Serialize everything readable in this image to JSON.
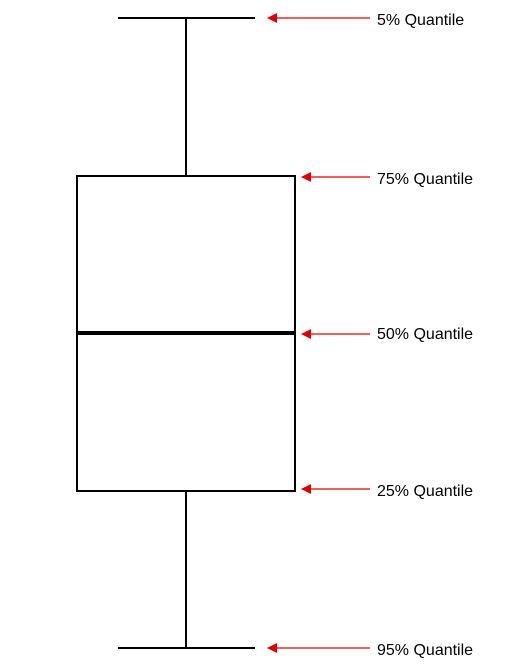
{
  "labels": {
    "q5": "5% Quantile",
    "q75": "75% Quantile",
    "q50": "50% Quantile",
    "q25": "25% Quantile",
    "q95": "95% Quantile"
  },
  "colors": {
    "line": "#000000",
    "arrow": "#e00000",
    "text": "#000000",
    "background": "#ffffff"
  }
}
